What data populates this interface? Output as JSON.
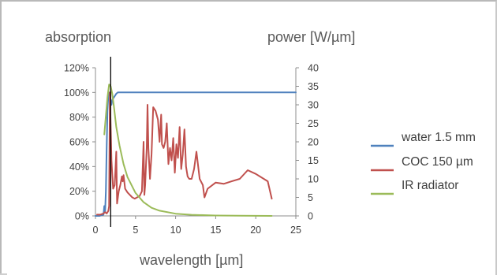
{
  "chart_data": {
    "type": "line",
    "title": "",
    "y_left_label": "absorption",
    "y_right_label": "power [W/µm]",
    "xlabel": "wavelength [µm]",
    "xlim": [
      0,
      25
    ],
    "x_ticks": [
      "0",
      "5",
      "10",
      "15",
      "20",
      "25"
    ],
    "ylim_left": [
      0,
      120
    ],
    "y_left_ticks": [
      "0%",
      "20%",
      "40%",
      "60%",
      "80%",
      "100%",
      "120%"
    ],
    "ylim_right": [
      0,
      40
    ],
    "y_right_ticks": [
      "0",
      "5",
      "10",
      "15",
      "20",
      "25",
      "30",
      "35",
      "40"
    ],
    "grid": false,
    "legend_position": "right",
    "marker_line_x": 1.9,
    "series": [
      {
        "name": "water 1.5 mm",
        "axis": "left",
        "color": "#4f81bd",
        "x": [
          0,
          0.5,
          1.0,
          1.1,
          1.2,
          1.3,
          1.4,
          1.5,
          1.6,
          1.7,
          1.8,
          1.9,
          2.0,
          2.1,
          2.3,
          2.6,
          2.8,
          3.0,
          3.5,
          5,
          10,
          15,
          20,
          25
        ],
        "y": [
          0,
          0,
          1,
          8,
          3,
          20,
          55,
          85,
          97,
          100,
          99,
          92,
          90,
          94,
          96,
          99,
          100,
          100,
          100,
          100,
          100,
          100,
          100,
          100
        ]
      },
      {
        "name": "COC 150 µm",
        "axis": "left",
        "color": "#c0504d",
        "x": [
          0.2,
          0.6,
          1.0,
          1.2,
          1.4,
          1.6,
          1.7,
          1.75,
          1.8,
          2.0,
          2.2,
          2.4,
          2.6,
          2.7,
          2.9,
          3.1,
          3.3,
          3.4,
          3.5,
          3.7,
          4.0,
          4.3,
          4.6,
          4.9,
          5.2,
          5.5,
          5.8,
          6.0,
          6.1,
          6.2,
          6.4,
          6.5,
          6.6,
          6.8,
          7.0,
          7.2,
          7.5,
          7.8,
          8.0,
          8.2,
          8.3,
          8.5,
          8.7,
          8.9,
          9.1,
          9.3,
          9.5,
          9.7,
          9.9,
          10.1,
          10.3,
          10.5,
          10.7,
          10.9,
          11.1,
          11.3,
          11.5,
          11.7,
          12.0,
          12.3,
          12.6,
          13.0,
          13.4,
          13.6,
          14.0,
          15.0,
          16.0,
          17.0,
          18.0,
          19.0,
          20.0,
          21.0,
          21.5,
          22.0
        ],
        "y": [
          1,
          1,
          2,
          3,
          2,
          4,
          8,
          55,
          100,
          45,
          22,
          25,
          52,
          10,
          20,
          25,
          32,
          28,
          33,
          22,
          19,
          17,
          15,
          14,
          15,
          16,
          20,
          60,
          17,
          25,
          55,
          90,
          55,
          30,
          50,
          88,
          85,
          78,
          60,
          82,
          58,
          55,
          60,
          75,
          42,
          55,
          45,
          63,
          35,
          58,
          47,
          72,
          38,
          50,
          70,
          40,
          32,
          30,
          30,
          38,
          52,
          30,
          25,
          15,
          22,
          27,
          26,
          28,
          30,
          37,
          34,
          30,
          28,
          14
        ]
      },
      {
        "name": "IR radiator",
        "axis": "right",
        "color": "#9bbb59",
        "x": [
          1.1,
          1.3,
          1.5,
          1.7,
          1.9,
          2.1,
          2.3,
          2.6,
          3.0,
          3.5,
          4.0,
          5.0,
          6.0,
          7.0,
          8.0,
          10.0,
          12.0,
          15.0,
          18.0,
          20.0,
          22.0
        ],
        "y": [
          22,
          27,
          32,
          35.5,
          35,
          33,
          29.5,
          24,
          19,
          14,
          10.5,
          6.2,
          3.7,
          2.2,
          1.4,
          0.6,
          0.3,
          0.1,
          0.05,
          0.02,
          0.01
        ]
      }
    ]
  }
}
